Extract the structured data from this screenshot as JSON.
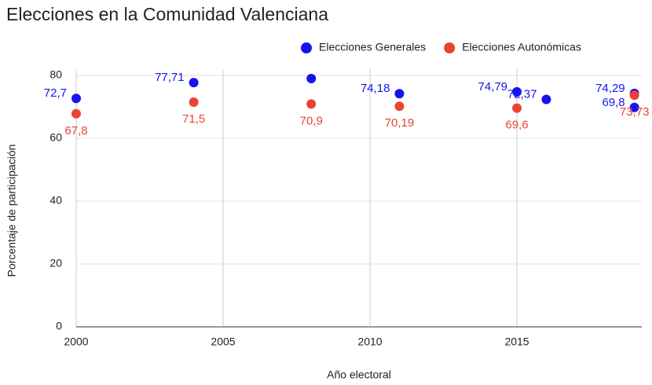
{
  "chart_data": {
    "type": "scatter",
    "title": "Elecciones en la Comunidad Valenciana",
    "x_label": "Año electoral",
    "y_label": "Porcentaje de participación",
    "legend": "top-right",
    "grid": true,
    "xlim": [
      2000,
      2019.25
    ],
    "xticks": [
      2000,
      2005,
      2010,
      2015
    ],
    "ylim": [
      0,
      82
    ],
    "yticks": [
      0,
      20,
      40,
      60,
      80
    ],
    "series": [
      {
        "name": "Elecciones Generales",
        "color": "#1414f0",
        "x": [
          2000,
          2004,
          2008,
          2011,
          2015,
          2016,
          2019,
          2019
        ],
        "values": [
          72.7,
          77.71,
          79,
          74.18,
          74.79,
          72.37,
          74.29,
          69.8
        ],
        "value_labels": [
          "72,7",
          "77,71",
          null,
          "74,18",
          "74,79",
          "72,37",
          "74,29",
          "69,8"
        ]
      },
      {
        "name": "Elecciones Autonómicas",
        "color": "#ea4335",
        "x": [
          2000,
          2004,
          2008,
          2011,
          2015,
          2019
        ],
        "values": [
          67.8,
          71.5,
          70.9,
          70.19,
          69.6,
          73.73
        ],
        "value_labels": [
          "67,8",
          "71,5",
          "70,9",
          "70,19",
          "69,6",
          "73,73"
        ]
      }
    ]
  }
}
